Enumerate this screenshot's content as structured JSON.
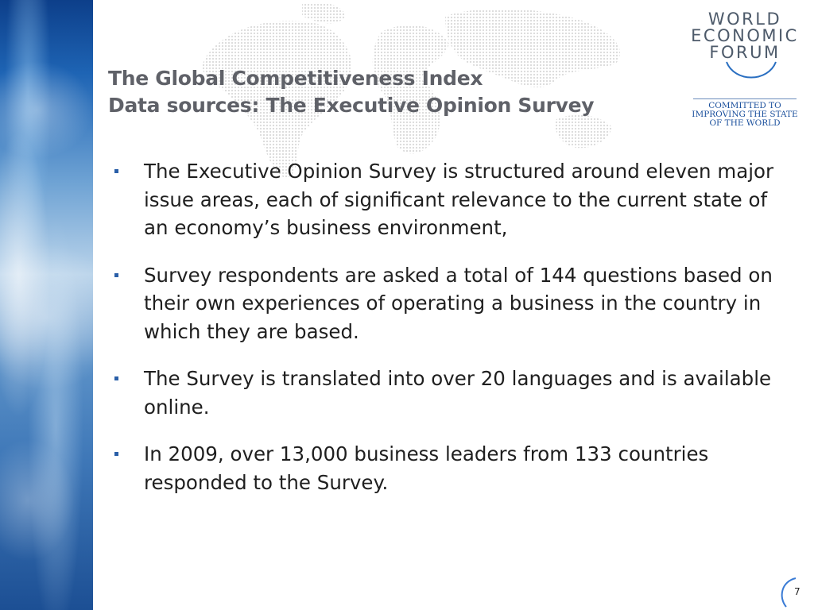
{
  "slide": {
    "title_line1": "The Global Competitiveness Index",
    "title_line2": "Data sources: The Executive Opinion Survey",
    "bullets": [
      "The Executive Opinion Survey is structured around eleven major issue areas, each of significant relevance to the current state of an economy’s business environment,",
      "Survey respondents are asked a total of 144 questions based on their own experiences of operating a business in the country in which they are based.",
      "The Survey is translated into over 20 languages and is available online.",
      "In 2009, over 13,000 business leaders from 133 countries responded to the Survey."
    ],
    "page_number": "7"
  },
  "logo": {
    "line1": "WORLD",
    "line2": "ECONOMIC",
    "line3": "FORUM",
    "tagline_line1": "COMMITTED TO",
    "tagline_line2": "IMPROVING THE STATE",
    "tagline_line3": "OF THE WORLD"
  },
  "colors": {
    "title": "#5f6168",
    "bullet_marker": "#2a5fa8",
    "logo_text": "#4d5a6a",
    "tagline": "#1a4f9c"
  }
}
